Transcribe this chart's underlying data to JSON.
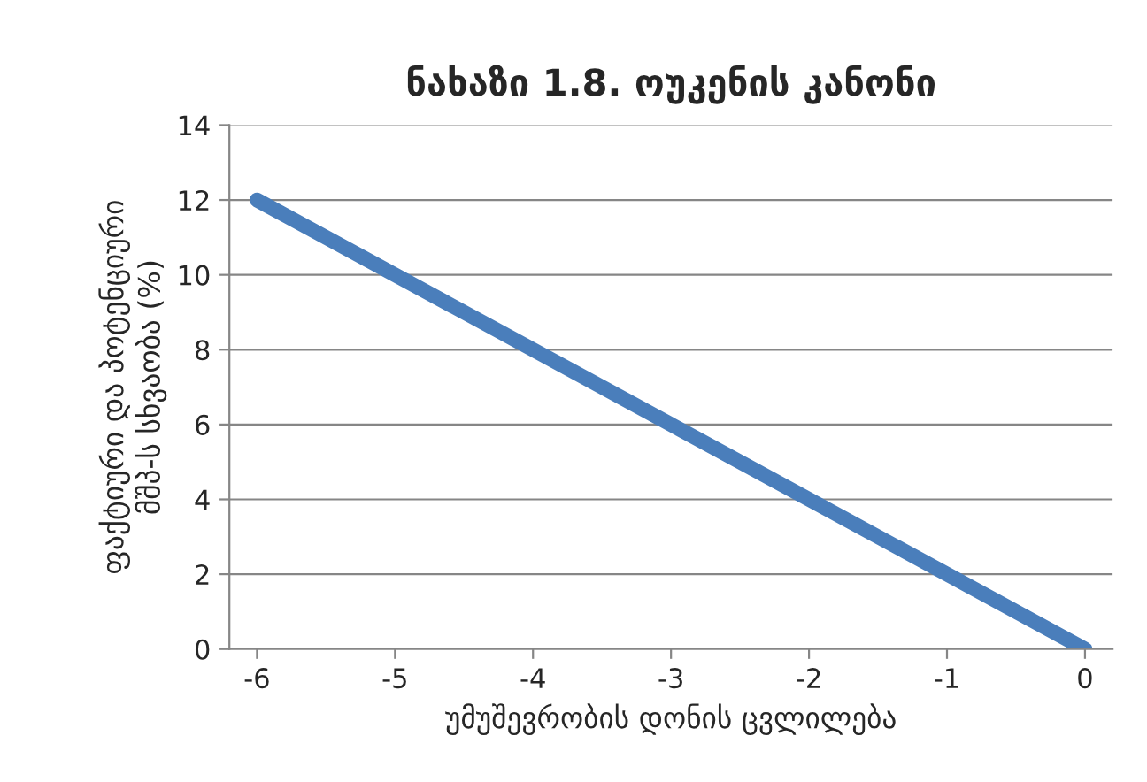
{
  "chart_data": {
    "type": "line",
    "title": "ნახაზი 1.8. ოუკენის კანონი",
    "xlabel": "უმუშევრობის დონის ცვლილება",
    "ylabel": "ფაქტიური და პოტენციური\nმშპ-ს სხვაობა (%)",
    "x": [
      -6,
      0
    ],
    "series": [
      {
        "color": "#4a7ebb",
        "values": [
          12,
          0
        ]
      }
    ],
    "xlim": [
      -6.2,
      0.2
    ],
    "xticks": [
      -6,
      -5,
      -4,
      -3,
      -2,
      -1,
      0
    ],
    "ylim": [
      0,
      14
    ],
    "yticks": [
      0,
      2,
      4,
      6,
      8,
      10,
      12,
      14
    ],
    "grid": "y",
    "marker": "none",
    "line_style": "solid"
  }
}
